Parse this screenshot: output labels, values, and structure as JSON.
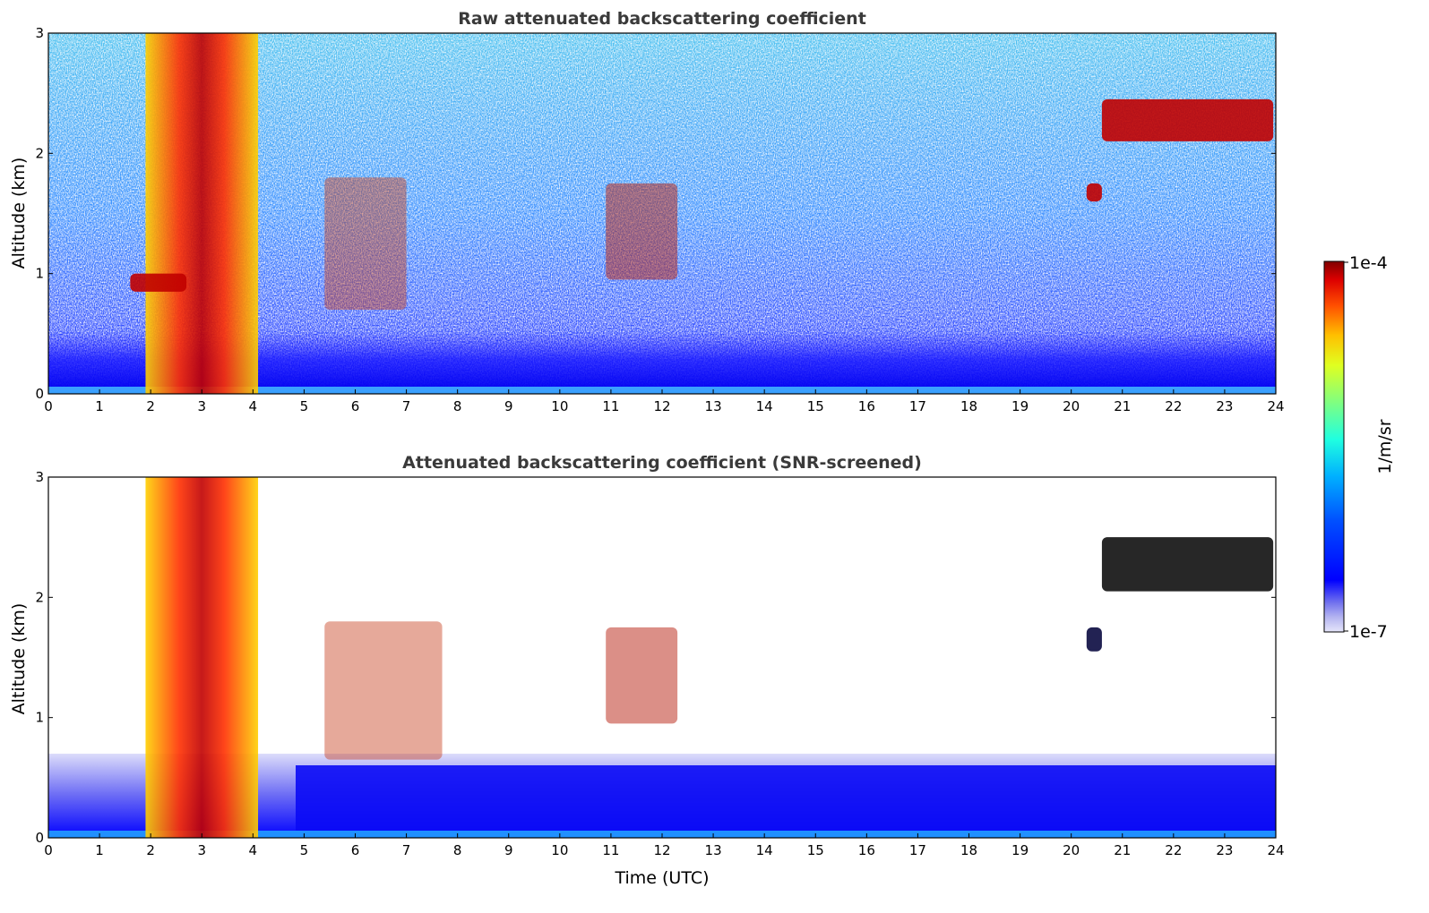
{
  "chart_data": [
    {
      "type": "heatmap",
      "title": "Raw attenuated backscattering coefficient",
      "xlabel": "",
      "ylabel": "Altitude (km)",
      "xlim": [
        0,
        24
      ],
      "ylim": [
        0,
        3
      ],
      "x_ticks": [
        "0",
        "1",
        "2",
        "3",
        "4",
        "5",
        "6",
        "7",
        "8",
        "9",
        "10",
        "11",
        "12",
        "13",
        "14",
        "15",
        "16",
        "17",
        "18",
        "19",
        "20",
        "21",
        "22",
        "23",
        "24"
      ],
      "y_ticks": [
        "0",
        "1",
        "2",
        "3"
      ],
      "colorscale": "jet",
      "features": [
        {
          "feature": "low cloud / precipitation columns",
          "t_start": 1.9,
          "t_end": 4.1,
          "alt_bottom": 0.0,
          "alt_top": 3.0
        },
        {
          "feature": "cloud layer",
          "t_start": 1.6,
          "t_end": 2.7,
          "alt_bottom": 0.85,
          "alt_top": 1.0
        },
        {
          "feature": "descending aerosol/cloud streaks",
          "t_start": 5.4,
          "t_end": 7.0,
          "alt_bottom": 0.7,
          "alt_top": 1.8
        },
        {
          "feature": "cloud patches",
          "t_start": 10.9,
          "t_end": 12.3,
          "alt_bottom": 0.95,
          "alt_top": 1.75
        },
        {
          "feature": "small cloud",
          "t_start": 20.3,
          "t_end": 20.6,
          "alt_bottom": 1.6,
          "alt_top": 1.75
        },
        {
          "feature": "cloud layer",
          "t_start": 20.6,
          "t_end": 23.95,
          "alt_bottom": 2.1,
          "alt_top": 2.45
        },
        {
          "feature": "boundary layer",
          "t_start": 0,
          "t_end": 24,
          "alt_bottom": 0.0,
          "alt_top": 0.5
        }
      ]
    },
    {
      "type": "heatmap",
      "title": "Attenuated backscattering coefficient (SNR-screened)",
      "xlabel": "Time (UTC)",
      "ylabel": "Altitude (km)",
      "xlim": [
        0,
        24
      ],
      "ylim": [
        0,
        3
      ],
      "x_ticks": [
        "0",
        "1",
        "2",
        "3",
        "4",
        "5",
        "6",
        "7",
        "8",
        "9",
        "10",
        "11",
        "12",
        "13",
        "14",
        "15",
        "16",
        "17",
        "18",
        "19",
        "20",
        "21",
        "22",
        "23",
        "24"
      ],
      "y_ticks": [
        "0",
        "1",
        "2",
        "3"
      ],
      "colorscale": "jet",
      "features": [
        {
          "feature": "low cloud / precipitation columns",
          "t_start": 1.9,
          "t_end": 4.1,
          "alt_bottom": 0.0,
          "alt_top": 3.0
        },
        {
          "feature": "descending aerosol/cloud streaks",
          "t_start": 5.4,
          "t_end": 7.7,
          "alt_bottom": 0.65,
          "alt_top": 1.8
        },
        {
          "feature": "cloud patches",
          "t_start": 10.9,
          "t_end": 12.3,
          "alt_bottom": 0.95,
          "alt_top": 1.75
        },
        {
          "feature": "small cloud",
          "t_start": 20.3,
          "t_end": 20.6,
          "alt_bottom": 1.55,
          "alt_top": 1.75
        },
        {
          "feature": "cloud layer",
          "t_start": 20.6,
          "t_end": 23.95,
          "alt_bottom": 2.05,
          "alt_top": 2.5
        },
        {
          "feature": "boundary layer",
          "t_start": 0,
          "t_end": 24,
          "alt_bottom": 0.0,
          "alt_top": 0.65
        }
      ]
    }
  ],
  "colorbar": {
    "label": "1/m/sr",
    "max_label": "1e-4",
    "min_label": "1e-7",
    "range": [
      1e-07,
      0.0001
    ],
    "scale": "log"
  }
}
